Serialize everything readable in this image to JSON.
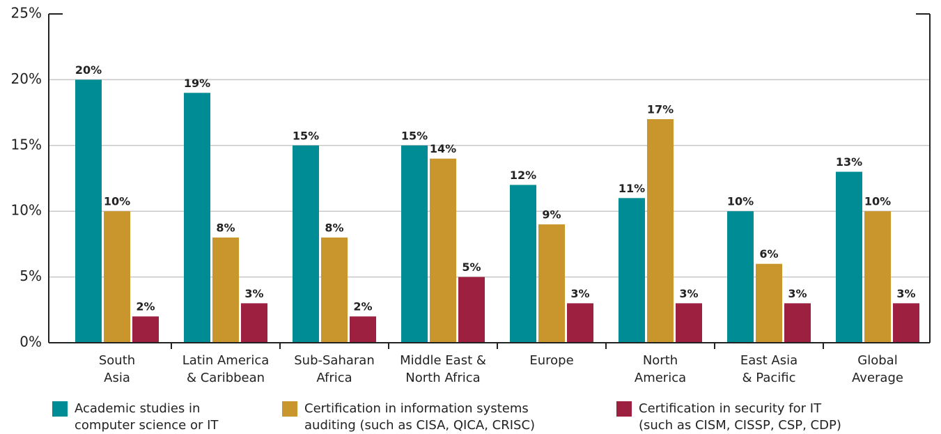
{
  "chart_data": {
    "type": "bar",
    "categories": [
      [
        "South",
        "Asia"
      ],
      [
        "Latin America",
        "& Caribbean"
      ],
      [
        "Sub-Saharan",
        "Africa"
      ],
      [
        "Middle East &",
        "North Africa"
      ],
      [
        "Europe"
      ],
      [
        "North",
        "America"
      ],
      [
        "East Asia",
        "& Pacific"
      ],
      [
        "Global",
        "Average"
      ]
    ],
    "series": [
      {
        "name": [
          "Academic studies in",
          "computer science or IT"
        ],
        "color": "#008c95",
        "values": [
          20,
          19,
          15,
          15,
          12,
          11,
          10,
          13
        ],
        "value_labels": [
          "20%",
          "19%",
          "15%",
          "15%",
          "12%",
          "11%",
          "10%",
          "13%"
        ]
      },
      {
        "name": [
          "Certification in information systems",
          "auditing (such as CISA, QICA, CRISC)"
        ],
        "color": "#c8962d",
        "values": [
          10,
          8,
          8,
          14,
          9,
          17,
          6,
          10
        ],
        "value_labels": [
          "10%",
          "8%",
          "8%",
          "14%",
          "9%",
          "17%",
          "6%",
          "10%"
        ]
      },
      {
        "name": [
          "Certification in security for IT",
          "(such as CISM, CISSP, CSP, CDP)"
        ],
        "color": "#9e2040",
        "values": [
          2,
          3,
          2,
          5,
          3,
          3,
          3,
          3
        ],
        "value_labels": [
          "2%",
          "3%",
          "2%",
          "5%",
          "3%",
          "3%",
          "3%",
          "3%"
        ]
      }
    ],
    "ylim": [
      0,
      25
    ],
    "yticks": [
      {
        "value": 0,
        "label": "0%"
      },
      {
        "value": 5,
        "label": "5%"
      },
      {
        "value": 10,
        "label": "10%"
      },
      {
        "value": 15,
        "label": "15%"
      },
      {
        "value": 20,
        "label": "20%"
      },
      {
        "value": 25,
        "label": "25%"
      }
    ],
    "grid": true
  }
}
